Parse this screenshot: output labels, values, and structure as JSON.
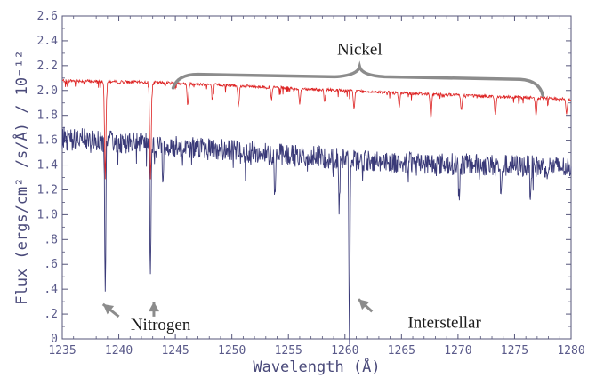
{
  "chart_data": {
    "type": "line",
    "xlabel": "Wavelength (Å)",
    "ylabel": "Flux (ergs/cm² /s/Å) / 10⁻¹²",
    "xlim": [
      1235,
      1280
    ],
    "ylim": [
      0,
      2.6
    ],
    "x_ticks": [
      "1235",
      "1240",
      "1245",
      "1250",
      "1255",
      "1260",
      "1265",
      "1270",
      "1275",
      "1280"
    ],
    "y_ticks": [
      "0",
      ".2",
      ".4",
      ".6",
      ".8",
      "1.0",
      "1.2",
      "1.4",
      "1.6",
      "1.8",
      "2.0",
      "2.2",
      "2.4",
      "2.6"
    ],
    "series": [
      {
        "color": "#dd2222",
        "baseline": [
          [
            1235,
            2.08
          ],
          [
            1245,
            2.06
          ],
          [
            1255,
            2.02
          ],
          [
            1265,
            1.98
          ],
          [
            1280,
            1.93
          ]
        ],
        "absorption_lines": [
          {
            "x": 1238.8,
            "depth": 0.78
          },
          {
            "x": 1242.8,
            "depth": 0.78
          },
          {
            "x": 1246.1,
            "depth": 0.18
          },
          {
            "x": 1248.3,
            "depth": 0.12
          },
          {
            "x": 1250.6,
            "depth": 0.14
          },
          {
            "x": 1253.5,
            "depth": 0.1
          },
          {
            "x": 1256.0,
            "depth": 0.12
          },
          {
            "x": 1258.2,
            "depth": 0.1
          },
          {
            "x": 1260.8,
            "depth": 0.14
          },
          {
            "x": 1264.8,
            "depth": 0.12
          },
          {
            "x": 1267.6,
            "depth": 0.2
          },
          {
            "x": 1270.3,
            "depth": 0.12
          },
          {
            "x": 1273.3,
            "depth": 0.16
          },
          {
            "x": 1276.9,
            "depth": 0.14
          },
          {
            "x": 1279.6,
            "depth": 0.12
          }
        ]
      },
      {
        "color": "#3a3a78",
        "baseline": [
          [
            1235,
            1.62
          ],
          [
            1245,
            1.55
          ],
          [
            1255,
            1.48
          ],
          [
            1265,
            1.42
          ],
          [
            1280,
            1.38
          ]
        ],
        "absorption_lines": [
          {
            "x": 1238.8,
            "depth": 1.27
          },
          {
            "x": 1242.8,
            "depth": 1.12
          },
          {
            "x": 1243.9,
            "depth": 0.3
          },
          {
            "x": 1253.8,
            "depth": 0.35
          },
          {
            "x": 1259.5,
            "depth": 0.4
          },
          {
            "x": 1260.4,
            "depth": 1.45
          },
          {
            "x": 1270.1,
            "depth": 0.28
          },
          {
            "x": 1273.8,
            "depth": 0.3
          },
          {
            "x": 1276.4,
            "depth": 0.22
          }
        ]
      }
    ],
    "annotations": [
      {
        "text": "Nickel",
        "x": 1261.3,
        "y": 2.29
      },
      {
        "text": "Nitrogen",
        "x": 1243.7,
        "y": 0.07
      },
      {
        "text": "Interstellar",
        "x": 1268.8,
        "y": 0.09
      }
    ],
    "annotation_pointers": [
      {
        "from": [
          1240.0,
          0.18
        ],
        "to": [
          1238.6,
          0.28
        ]
      },
      {
        "from": [
          1243.1,
          0.18
        ],
        "to": [
          1243.1,
          0.3
        ]
      },
      {
        "from": [
          1262.4,
          0.22
        ],
        "to": [
          1261.2,
          0.32
        ]
      }
    ],
    "nickel_brace": {
      "x_start": 1244.8,
      "x_peak": 1261.3,
      "x_end": 1277.5,
      "y_low": 2.02,
      "y_mid": 2.13,
      "y_peak": 2.19
    },
    "grid": false
  }
}
